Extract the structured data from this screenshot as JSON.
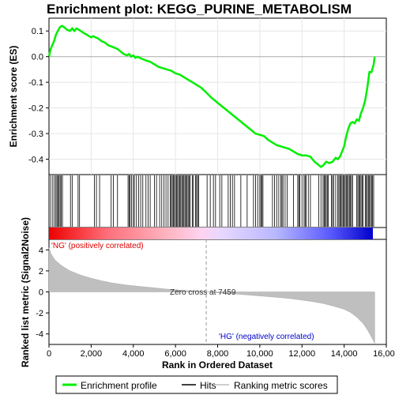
{
  "chart_data": {
    "type": "line",
    "title": "Enrichment plot: KEGG_PURINE_METABOLISM",
    "xlabel": "Rank in Ordered Dataset",
    "ylabel_top": "Enrichment score (ES)",
    "ylabel_bottom": "Ranked list metric (Signal2Noise)",
    "xlim": [
      0,
      16000
    ],
    "x_ticks": [
      0,
      2000,
      4000,
      6000,
      8000,
      10000,
      12000,
      14000,
      16000
    ],
    "x_tick_labels": [
      "0",
      "2,000",
      "4,000",
      "6,000",
      "8,000",
      "10,000",
      "12,000",
      "14,000",
      "16,000"
    ],
    "es_ylim": [
      -0.46,
      0.15
    ],
    "es_ticks": [
      0.1,
      0.0,
      -0.1,
      -0.2,
      -0.3,
      -0.4
    ],
    "es_tick_labels": [
      "0.1",
      "0.0",
      "-0.1",
      "-0.2",
      "-0.3",
      "-0.4"
    ],
    "metric_ylim": [
      -5,
      5
    ],
    "metric_ticks": [
      4,
      2,
      0,
      -2,
      -4
    ],
    "metric_tick_labels": [
      "4",
      "2",
      "0",
      "-2",
      "-4"
    ],
    "series": [
      {
        "name": "Enrichment profile",
        "color": "#00ee00",
        "x": [
          0,
          80,
          160,
          240,
          330,
          420,
          520,
          620,
          720,
          850,
          1000,
          1100,
          1200,
          1300,
          1420,
          1600,
          1800,
          2000,
          2100,
          2200,
          2350,
          2500,
          2650,
          2800,
          2950,
          3100,
          3250,
          3400,
          3550,
          3700,
          3800,
          3900,
          4000,
          4100,
          4200,
          4300,
          4450,
          4600,
          4800,
          5000,
          5200,
          5400,
          5600,
          5800,
          6000,
          6200,
          6400,
          6600,
          6800,
          7000,
          7200,
          7459,
          7700,
          8000,
          8300,
          8600,
          8900,
          9200,
          9500,
          9800,
          10000,
          10200,
          10400,
          10600,
          10800,
          11000,
          11200,
          11400,
          11600,
          11800,
          12000,
          12200,
          12400,
          12600,
          12750,
          12900,
          13000,
          13150,
          13300,
          13450,
          13600,
          13700,
          13800,
          13900,
          14000,
          14100,
          14200,
          14300,
          14400,
          14500,
          14600,
          14700,
          14800,
          14900,
          15000,
          15100,
          15200,
          15300,
          15400,
          15450
        ],
        "y": [
          0.0,
          0.03,
          0.045,
          0.06,
          0.085,
          0.1,
          0.115,
          0.12,
          0.115,
          0.105,
          0.1,
          0.11,
          0.1,
          0.11,
          0.105,
          0.095,
          0.085,
          0.075,
          0.08,
          0.075,
          0.07,
          0.06,
          0.055,
          0.045,
          0.04,
          0.035,
          0.03,
          0.02,
          0.01,
          0.005,
          0.01,
          0.0,
          0.005,
          -0.005,
          0.0,
          -0.005,
          -0.01,
          -0.015,
          -0.02,
          -0.03,
          -0.04,
          -0.045,
          -0.05,
          -0.055,
          -0.065,
          -0.07,
          -0.08,
          -0.09,
          -0.1,
          -0.11,
          -0.12,
          -0.14,
          -0.16,
          -0.18,
          -0.2,
          -0.22,
          -0.24,
          -0.26,
          -0.28,
          -0.3,
          -0.305,
          -0.31,
          -0.325,
          -0.335,
          -0.345,
          -0.35,
          -0.355,
          -0.36,
          -0.37,
          -0.38,
          -0.385,
          -0.385,
          -0.39,
          -0.41,
          -0.42,
          -0.43,
          -0.425,
          -0.41,
          -0.415,
          -0.41,
          -0.395,
          -0.4,
          -0.39,
          -0.37,
          -0.35,
          -0.31,
          -0.28,
          -0.26,
          -0.255,
          -0.26,
          -0.245,
          -0.25,
          -0.22,
          -0.2,
          -0.17,
          -0.12,
          -0.06,
          -0.06,
          -0.03,
          0.0
        ]
      },
      {
        "name": "Hits",
        "color": "#000000",
        "hits": [
          80,
          180,
          260,
          330,
          380,
          430,
          480,
          530,
          580,
          640,
          1020,
          1100,
          1380,
          1450,
          2150,
          2250,
          2400,
          2950,
          3050,
          3250,
          3750,
          3800,
          3850,
          3920,
          4000,
          4050,
          4150,
          4250,
          4350,
          4450,
          4600,
          4700,
          4800,
          5000,
          5100,
          5250,
          5350,
          5450,
          5550,
          5650,
          5750,
          5800,
          5850,
          5900,
          5950,
          6000,
          6050,
          6100,
          6150,
          6200,
          6250,
          6300,
          6350,
          6400,
          6450,
          6500,
          6550,
          6600,
          6650,
          6700,
          6800,
          6850,
          6950,
          7000,
          7050,
          7100,
          7500,
          7650,
          7800,
          7900,
          8100,
          8200,
          8500,
          8600,
          8700,
          8800,
          9100,
          9400,
          9700,
          9800,
          9900,
          10000,
          10050,
          10100,
          10150,
          10600,
          10700,
          10800,
          10900,
          11000,
          11050,
          11100,
          11200,
          11300,
          11600,
          11800,
          11850,
          11900,
          12000,
          12100,
          12150,
          12200,
          12300,
          12400,
          12800,
          12900,
          13000,
          13050,
          13100,
          13150,
          13200,
          13250,
          13400,
          13450,
          13500,
          13600,
          13700,
          13750,
          13800,
          13850,
          13900,
          13950,
          14000,
          14050,
          14100,
          14150,
          14200,
          14250,
          14300,
          14350,
          14400,
          14600,
          14650,
          14700,
          14750,
          14800,
          14850,
          14900,
          15000,
          15050,
          15100,
          15150,
          15200,
          15250,
          15300,
          15350,
          15400
        ]
      },
      {
        "name": "Ranking metric scores",
        "color": "#bfbfbf",
        "x": [
          0,
          100,
          300,
          600,
          1000,
          1500,
          2000,
          2500,
          3000,
          3500,
          4000,
          4500,
          5000,
          5500,
          6000,
          6500,
          7000,
          7459,
          8000,
          8500,
          9000,
          9500,
          10000,
          10500,
          11000,
          11500,
          12000,
          12500,
          13000,
          13500,
          14000,
          14300,
          14600,
          14900,
          15100,
          15300,
          15450
        ],
        "y": [
          4.2,
          3.6,
          3.0,
          2.5,
          2.0,
          1.6,
          1.3,
          1.05,
          0.85,
          0.7,
          0.58,
          0.48,
          0.38,
          0.28,
          0.2,
          0.12,
          0.05,
          0.0,
          -0.08,
          -0.15,
          -0.22,
          -0.3,
          -0.38,
          -0.46,
          -0.55,
          -0.65,
          -0.78,
          -0.92,
          -1.1,
          -1.35,
          -1.65,
          -1.95,
          -2.4,
          -3.0,
          -3.6,
          -4.3,
          -4.9
        ]
      }
    ],
    "annotations": {
      "positive": "'NG' (positively correlated)",
      "negative": "'HG' (negatively correlated)",
      "zero_cross": "Zero cross at 7459",
      "zero_cross_x": 7459
    },
    "legend": {
      "placement": "bottom",
      "items": [
        "Enrichment profile",
        "Hits",
        "Ranking metric scores"
      ]
    }
  }
}
